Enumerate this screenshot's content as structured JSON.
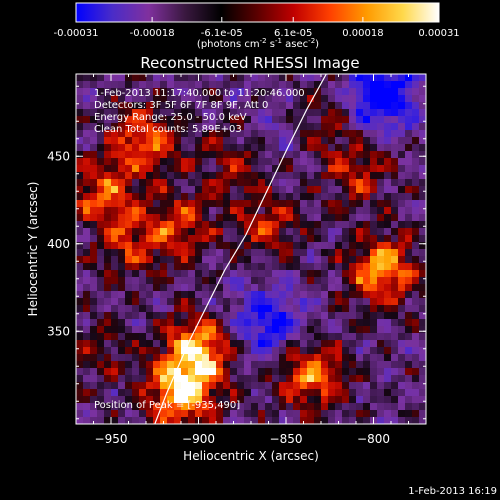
{
  "chart_data": {
    "type": "heatmap",
    "title": "Reconstructed RHESSI Image",
    "xlabel": "Heliocentric X (arcsec)",
    "ylabel": "Heliocentric Y (arcsec)",
    "xlim": [
      -970,
      -770
    ],
    "ylim": [
      297,
      497
    ],
    "xticks": [
      -950,
      -900,
      -850,
      -800
    ],
    "xtick_labels": [
      "−950",
      "−900",
      "−850",
      "−800"
    ],
    "yticks": [
      350,
      400,
      450
    ],
    "ytick_labels": [
      "350",
      "400",
      "450"
    ],
    "colorbar": {
      "range": [
        -0.00031,
        0.00031
      ],
      "ticks": [
        -0.00031,
        -0.00018,
        -6.1e-05,
        6.1e-05,
        0.00018,
        0.00031
      ],
      "tick_labels": [
        "-0.00031",
        "-0.00018",
        "-6.1e-05",
        "6.1e-05",
        "0.00018",
        "0.00031"
      ],
      "unit_prefix": "(photons cm",
      "unit_exp1": "-2",
      "unit_mid": " s",
      "unit_exp2": "-1",
      "unit_mid2": " asec",
      "unit_exp3": "-2",
      "unit_suffix": ")",
      "colors": [
        "#0000ff",
        "#4a2cc8",
        "#80309e",
        "#3a1840",
        "#000000",
        "#5c0000",
        "#c00000",
        "#ff4000",
        "#ff9a00",
        "#ffd84a",
        "#ffffff"
      ]
    },
    "annotations": [
      "1-Feb-2013 11:17:40.000 to 11:20:46.000",
      "Detectors: 3F 5F 6F 7F 8F 9F, Att 0",
      "Energy Range: 25.0 - 50.0 keV",
      "Clean     Total counts: 5.89E+03"
    ],
    "peak_label": "Position of Peak = [-935,490]",
    "limb_curve": {
      "x": [
        -925,
        -918,
        -905,
        -895,
        -885,
        -873,
        -861,
        -849,
        -838,
        -827
      ],
      "y": [
        297,
        315,
        345,
        365,
        385,
        405,
        430,
        455,
        477,
        497
      ]
    },
    "bright_regions": [
      {
        "x": -930,
        "y": 460,
        "level": 0.18
      },
      {
        "x": -955,
        "y": 430,
        "level": 0.16
      },
      {
        "x": -910,
        "y": 410,
        "level": 0.14
      },
      {
        "x": -940,
        "y": 400,
        "level": 0.12
      },
      {
        "x": -900,
        "y": 340,
        "level": 0.22
      },
      {
        "x": -910,
        "y": 315,
        "level": 0.25
      },
      {
        "x": -835,
        "y": 325,
        "level": 0.2
      },
      {
        "x": -860,
        "y": 410,
        "level": 0.12
      },
      {
        "x": -795,
        "y": 385,
        "level": 0.22
      },
      {
        "x": -830,
        "y": 470,
        "level": 0.1
      },
      {
        "x": -880,
        "y": 445,
        "level": 0.1
      },
      {
        "x": -810,
        "y": 440,
        "level": 0.12
      },
      {
        "x": -960,
        "y": 340,
        "level": 0.08
      }
    ],
    "dim_regions": [
      {
        "x": -795,
        "y": 485,
        "level": -0.22
      },
      {
        "x": -860,
        "y": 355,
        "level": -0.16
      },
      {
        "x": -850,
        "y": 465,
        "level": -0.06
      }
    ]
  },
  "date_stamp": "1-Feb-2013 16:19"
}
